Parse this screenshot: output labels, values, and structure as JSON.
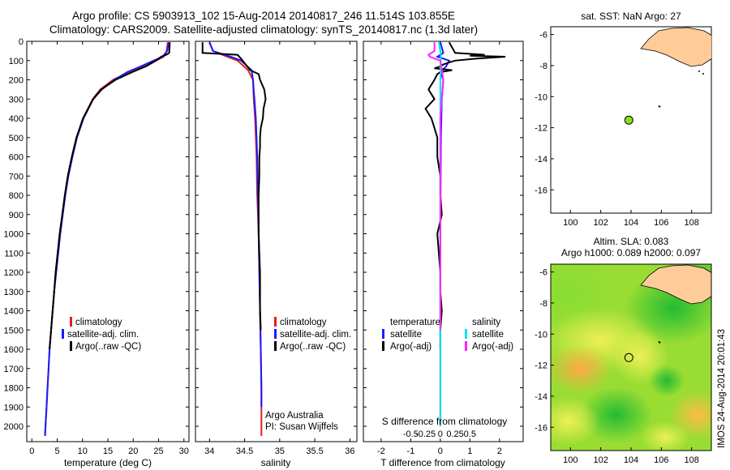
{
  "title": {
    "line1": "Argo profile: CS 5903913_102 15-Aug-2014 20140817_246 11.514S 103.855E",
    "line2": "Climatology: CARS2009. Satellite-adjusted climatology: synTS_20140817.nc (1.3d later)"
  },
  "timestamp": "IMOS 24-Aug-2014 20:01:43",
  "colors": {
    "climatology": "#e0201b",
    "satellite": "#1a1aff",
    "argo": "#000000",
    "sat_cyan": "#00e5ee",
    "argo_magenta": "#ff22ff",
    "land": "#ffcc99",
    "argo_marker": "#88dd22"
  },
  "chart_data": [
    {
      "type": "line",
      "name": "temperature-profile",
      "xlabel": "temperature (deg C)",
      "ylabel": "",
      "xlim": [
        -1,
        31
      ],
      "ylim": [
        2080,
        0
      ],
      "xticks": [
        0,
        5,
        10,
        15,
        20,
        25,
        30
      ],
      "yticks": [
        0,
        100,
        200,
        300,
        400,
        500,
        600,
        700,
        800,
        900,
        1000,
        1100,
        1200,
        1300,
        1400,
        1500,
        1600,
        1700,
        1800,
        1900,
        2000
      ],
      "series": [
        {
          "name": "climatology",
          "color": "#e0201b",
          "depth": [
            5,
            50,
            80,
            100,
            130,
            160,
            200,
            250,
            300,
            400,
            500,
            600,
            700,
            800,
            900,
            1000,
            1100,
            1200,
            1300,
            1400,
            1500,
            1600,
            1700,
            1800,
            1900,
            2000,
            2050
          ],
          "values": [
            26.8,
            26.6,
            26.0,
            24.5,
            22.0,
            19.2,
            16.0,
            13.5,
            12.0,
            10.1,
            8.8,
            7.9,
            7.1,
            6.5,
            6.0,
            5.5,
            5.1,
            4.7,
            4.4,
            4.1,
            3.8,
            3.5,
            3.3,
            3.1,
            2.9,
            2.7,
            2.6
          ]
        },
        {
          "name": "satellite-adj. clim.",
          "color": "#1a1aff",
          "depth": [
            5,
            50,
            80,
            100,
            130,
            160,
            200,
            250,
            300,
            400,
            500,
            600,
            700,
            800,
            900,
            1000,
            1100,
            1200,
            1300,
            1400,
            1500,
            1600,
            1700,
            1800,
            1900,
            2000,
            2050
          ],
          "values": [
            27.0,
            26.7,
            25.8,
            24.0,
            21.5,
            18.8,
            16.3,
            13.8,
            12.1,
            10.2,
            8.9,
            8.0,
            7.2,
            6.6,
            6.1,
            5.6,
            5.2,
            4.8,
            4.4,
            4.1,
            3.8,
            3.5,
            3.3,
            3.1,
            2.9,
            2.7,
            2.6
          ]
        },
        {
          "name": "Argo(..raw -QC)",
          "color": "#000000",
          "depth": [
            5,
            60,
            70,
            80,
            100,
            130,
            160,
            200,
            250,
            300,
            400,
            500,
            600,
            700,
            800,
            900,
            1000,
            1100,
            1200,
            1300,
            1400,
            1500,
            1600
          ],
          "values": [
            27.2,
            27.1,
            26.5,
            25.5,
            24.5,
            22.5,
            19.8,
            16.5,
            13.7,
            12.1,
            10.1,
            8.8,
            7.9,
            7.1,
            6.5,
            6.0,
            5.5,
            5.1,
            4.7,
            4.4,
            4.1,
            3.8,
            3.5
          ]
        }
      ],
      "legend": [
        "climatology",
        "satellite-adj. clim.",
        "Argo(..raw -QC)"
      ]
    },
    {
      "type": "line",
      "name": "salinity-profile",
      "xlabel": "salinity",
      "xlim": [
        33.8,
        36.1
      ],
      "ylim": [
        2080,
        0
      ],
      "xticks": [
        34,
        34.5,
        35,
        35.5,
        36
      ],
      "xticklabels": [
        "34",
        "34.5",
        "35",
        "35.5",
        "36"
      ],
      "series": [
        {
          "name": "climatology",
          "color": "#e0201b",
          "depth": [
            5,
            50,
            80,
            100,
            150,
            200,
            300,
            400,
            500,
            600,
            800,
            1000,
            1200,
            1400,
            1600,
            1800,
            2000,
            2050
          ],
          "values": [
            34.0,
            34.05,
            34.25,
            34.4,
            34.55,
            34.62,
            34.63,
            34.65,
            34.66,
            34.67,
            34.68,
            34.7,
            34.71,
            34.72,
            34.73,
            34.74,
            34.74,
            34.74
          ]
        },
        {
          "name": "satellite-adj. clim.",
          "color": "#1a1aff",
          "depth": [
            5,
            50,
            80,
            100,
            150,
            200,
            300,
            400,
            500,
            600,
            800,
            1000,
            1200,
            1400,
            1600,
            1800,
            1900
          ],
          "values": [
            34.0,
            34.05,
            34.3,
            34.45,
            34.6,
            34.62,
            34.64,
            34.66,
            34.67,
            34.68,
            34.69,
            34.7,
            34.71,
            34.72,
            34.73,
            34.74,
            34.74
          ]
        },
        {
          "name": "Argo(..raw -QC)",
          "color": "#000000",
          "depth": [
            5,
            60,
            70,
            90,
            150,
            170,
            200,
            250,
            300,
            350,
            400,
            450,
            500,
            550,
            600,
            700,
            800,
            900,
            1000,
            1100,
            1200,
            1300,
            1400,
            1500
          ],
          "values": [
            33.9,
            33.9,
            34.4,
            34.45,
            34.58,
            34.7,
            34.72,
            34.78,
            34.8,
            34.77,
            34.76,
            34.73,
            34.72,
            34.72,
            34.71,
            34.71,
            34.7,
            34.7,
            34.7,
            34.71,
            34.72,
            34.72,
            34.72,
            34.73
          ]
        }
      ],
      "legend": [
        "climatology",
        "satellite-adj. clim.",
        "Argo(..raw -QC)"
      ],
      "annotation": [
        "Argo Australia",
        "PI: Susan Wijffels"
      ]
    },
    {
      "type": "line",
      "name": "difference-profile",
      "xlabel": "T difference from climatology",
      "top_label": "S difference from climatology",
      "xlim": [
        -2.6,
        2.8
      ],
      "ylim": [
        2080,
        0
      ],
      "xticks": [
        -2,
        -1,
        0,
        1,
        2
      ],
      "top_ticks": [
        "-0.5",
        "-0.25",
        "0",
        "0.25",
        "0.5"
      ],
      "series": [
        {
          "name": "temperature satellite",
          "color": "#1a1aff",
          "depth": [
            5,
            60,
            80,
            100,
            130,
            160,
            200,
            300,
            500,
            1000,
            1500,
            2000
          ],
          "values": [
            0.0,
            0.1,
            -0.1,
            0.3,
            0.2,
            0.0,
            0.1,
            0.05,
            0.02,
            0.0,
            0.0,
            0.0
          ]
        },
        {
          "name": "temperature Argo(-adj)",
          "color": "#000000",
          "depth": [
            5,
            60,
            70,
            75,
            80,
            90,
            100,
            110,
            120,
            130,
            140,
            150,
            160,
            170,
            200,
            250,
            300,
            350,
            400,
            450,
            500,
            600,
            700,
            800,
            900,
            1000,
            1100,
            1200,
            1300,
            1400,
            1500,
            1600
          ],
          "values": [
            0.3,
            0.5,
            1.5,
            1.0,
            2.2,
            1.2,
            0.5,
            0.3,
            0.1,
            0.0,
            -0.2,
            0.4,
            0.0,
            -0.1,
            -0.2,
            -0.4,
            -0.2,
            -0.5,
            -0.3,
            -0.2,
            -0.1,
            -0.1,
            0.0,
            0.0,
            0.05,
            -0.1,
            -0.05,
            0.0,
            0.0,
            0.05,
            0.0,
            0.0
          ]
        },
        {
          "name": "salinity satellite",
          "color": "#00e5ee",
          "depth": [
            5,
            50,
            80,
            100,
            200,
            400,
            600,
            800,
            1000,
            1200,
            1400,
            1600,
            1800,
            2000
          ],
          "values": [
            -0.05,
            0.0,
            0.02,
            0.01,
            0.0,
            0.0,
            0.0,
            0.0,
            0.0,
            0.0,
            0.0,
            0.0,
            0.0,
            0.0
          ]
        },
        {
          "name": "salinity Argo(-adj)",
          "color": "#ff22ff",
          "depth": [
            5,
            50,
            60,
            70,
            80,
            100,
            150,
            200,
            300,
            400,
            500,
            800,
            1000,
            1200,
            1500
          ],
          "values": [
            -0.2,
            -0.2,
            -0.3,
            -0.4,
            -0.35,
            0.0,
            0.05,
            0.1,
            0.05,
            0.0,
            0.0,
            0.0,
            0.0,
            0.0,
            0.0
          ]
        }
      ],
      "legend": {
        "temperature_heading": "temperature",
        "salinity_heading": "salinity",
        "items": [
          "satellite",
          "Argo(-adj)",
          "satellite",
          "Argo(-adj)"
        ]
      }
    },
    {
      "type": "scatter",
      "name": "sst-map",
      "title": "sat. SST: NaN Argo: 27",
      "xlim": [
        98.7,
        109.3
      ],
      "ylim": [
        -17.5,
        -5.5
      ],
      "xticks": [
        100,
        102,
        104,
        106,
        108
      ],
      "yticks": [
        -6,
        -8,
        -10,
        -12,
        -14,
        -16
      ],
      "argo_position": {
        "lon": 103.855,
        "lat": -11.514
      }
    },
    {
      "type": "heatmap",
      "name": "sla-map",
      "title_line1": "Altim. SLA: 0.083",
      "title_line2": "Argo h1000: 0.089 h2000: 0.097",
      "xlim": [
        98.7,
        109.3
      ],
      "ylim": [
        -17.5,
        -5.5
      ],
      "xticks": [
        100,
        102,
        104,
        106,
        108
      ],
      "yticks": [
        -6,
        -8,
        -10,
        -12,
        -14,
        -16
      ],
      "argo_position": {
        "lon": 103.855,
        "lat": -11.514
      }
    }
  ]
}
